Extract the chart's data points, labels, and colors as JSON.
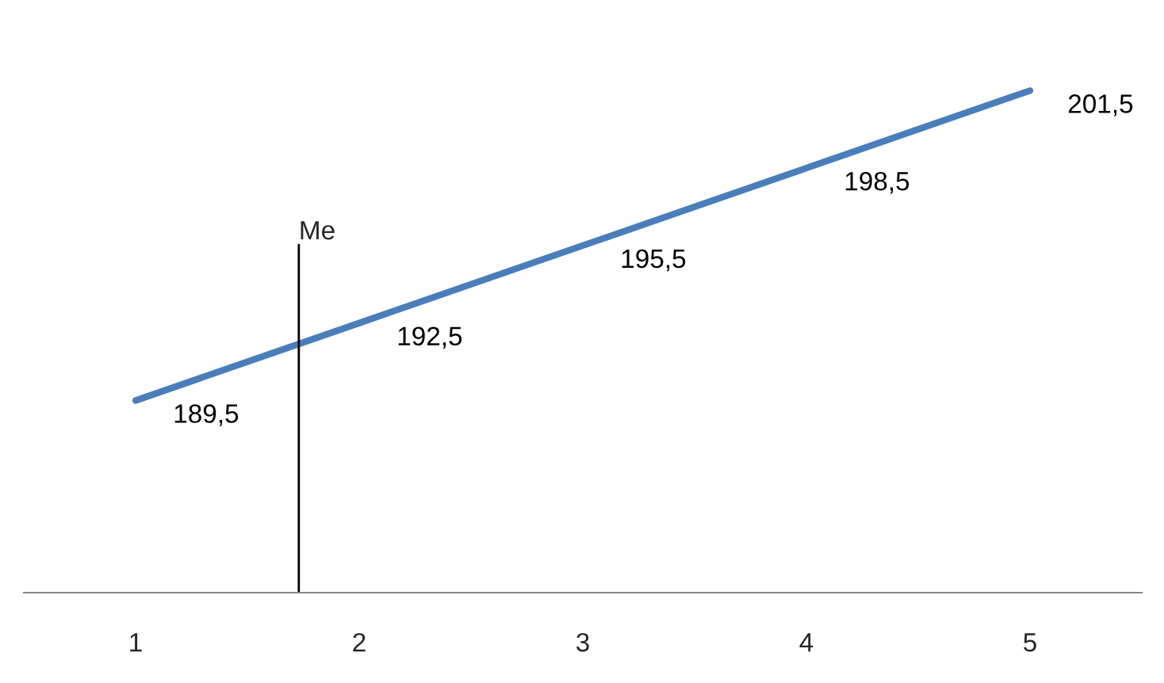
{
  "chart_data": {
    "type": "line",
    "x": [
      1,
      2,
      3,
      4,
      5
    ],
    "xlim": [
      0.5,
      5.5
    ],
    "xticks": [
      1,
      2,
      3,
      4,
      5
    ],
    "series": [
      {
        "color": "#4a7ebb",
        "values": [
          189.5,
          192.5,
          195.5,
          198.5,
          201.5
        ],
        "value_labels": [
          "189,5",
          "192,5",
          "195,5",
          "198,5",
          "201,5"
        ]
      }
    ],
    "ref_lines": [
      {
        "axis": "x",
        "value": 1.73,
        "label": "Me",
        "color": "#000000"
      }
    ],
    "grid": false,
    "marker": "none",
    "line_style": "solid"
  }
}
